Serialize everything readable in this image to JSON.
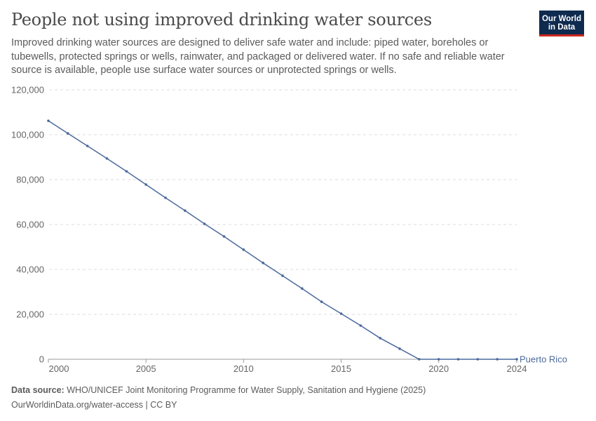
{
  "header": {
    "title": "People not using improved drinking water sources",
    "subtitle": "Improved drinking water sources are designed to deliver safe water and include: piped water, boreholes or tubewells, protected springs or wells, rainwater, and packaged or delivered water. If no safe and reliable water source is available, people use surface water sources or unprotected springs or wells.",
    "logo": "Our World in Data"
  },
  "chart_data": {
    "type": "line",
    "title": "People not using improved drinking water sources",
    "xlim": [
      2000,
      2024
    ],
    "ylim": [
      0,
      120000
    ],
    "x_ticks": [
      "2000",
      "2005",
      "2010",
      "2015",
      "2020",
      "2024"
    ],
    "y_ticks": [
      "0",
      "20,000",
      "40,000",
      "60,000",
      "80,000",
      "100,000",
      "120,000"
    ],
    "grid": "horizontal dashed",
    "series": [
      {
        "name": "Puerto Rico",
        "color": "#4c6a9c",
        "x": [
          2000,
          2001,
          2002,
          2003,
          2004,
          2005,
          2006,
          2007,
          2008,
          2009,
          2010,
          2011,
          2012,
          2013,
          2014,
          2015,
          2016,
          2017,
          2018,
          2019,
          2020,
          2021,
          2022,
          2023,
          2024
        ],
        "values": [
          106200,
          100600,
          95000,
          89400,
          83700,
          77800,
          71900,
          66200,
          60300,
          54700,
          48800,
          42900,
          37200,
          31500,
          25600,
          20300,
          15000,
          9400,
          4700,
          0,
          0,
          0,
          0,
          0,
          0
        ]
      }
    ]
  },
  "footer": {
    "source_label": "Data source:",
    "source": "WHO/UNICEF Joint Monitoring Programme for Water Supply, Sanitation and Hygiene (2025)",
    "link": "OurWorldinData.org/water-access | CC BY"
  }
}
